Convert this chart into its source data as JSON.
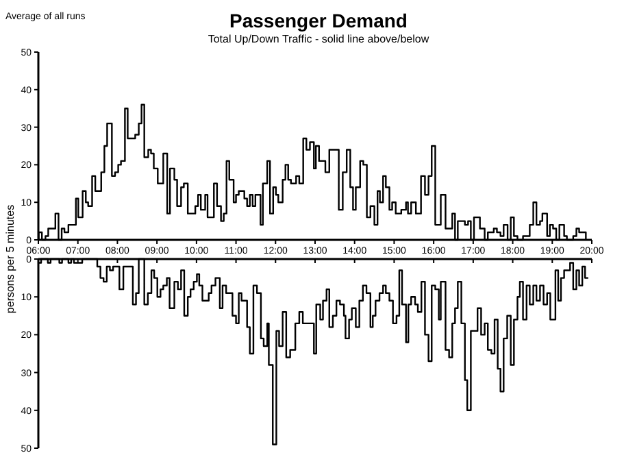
{
  "chart_data": [
    {
      "type": "step",
      "title": "Passenger Demand",
      "subtitle": "Total Up/Down Traffic - solid line above/below",
      "ylabel": "persons per 5 minutes",
      "annotations": [
        "Average of all runs"
      ],
      "xlim": [
        6,
        20
      ],
      "xticks": [
        {
          "value": 6,
          "label": "06:00"
        },
        {
          "value": 7,
          "label": "07:00"
        },
        {
          "value": 8,
          "label": "08:00"
        },
        {
          "value": 9,
          "label": "09:00"
        },
        {
          "value": 10,
          "label": "10:00"
        },
        {
          "value": 11,
          "label": "11:00"
        },
        {
          "value": 12,
          "label": "12:00"
        },
        {
          "value": 13,
          "label": "13:00"
        },
        {
          "value": 14,
          "label": "14:00"
        },
        {
          "value": 15,
          "label": "15:00"
        },
        {
          "value": 16,
          "label": "16:00"
        },
        {
          "value": 17,
          "label": "17:00"
        },
        {
          "value": 18,
          "label": "18:00"
        },
        {
          "value": 19,
          "label": "19:00"
        },
        {
          "value": 20,
          "label": "20:00"
        }
      ],
      "ylim": [
        0,
        50
      ],
      "yticks": [
        0,
        10,
        20,
        30,
        40,
        50
      ],
      "grid": false,
      "series": [
        {
          "color": "#000000",
          "x": [
            6.0,
            6.01,
            6.09,
            6.18,
            6.25,
            6.43,
            6.51,
            6.59,
            6.66,
            6.76,
            6.95,
            7.01,
            7.12,
            7.2,
            7.26,
            7.36,
            7.44,
            7.59,
            7.67,
            7.74,
            7.86,
            7.94,
            8.02,
            8.09,
            8.19,
            8.26,
            8.45,
            8.54,
            8.61,
            8.68,
            8.78,
            8.85,
            8.92,
            9.02,
            9.16,
            9.26,
            9.33,
            9.44,
            9.51,
            9.61,
            9.68,
            9.78,
            9.97,
            10.04,
            10.11,
            10.22,
            10.28,
            10.44,
            10.52,
            10.62,
            10.69,
            10.76,
            10.83,
            10.94,
            11.0,
            11.07,
            11.21,
            11.28,
            11.35,
            11.42,
            11.49,
            11.62,
            11.68,
            11.79,
            11.86,
            11.94,
            12.01,
            12.07,
            12.18,
            12.25,
            12.32,
            12.39,
            12.52,
            12.6,
            12.7,
            12.78,
            12.87,
            12.97,
            13.02,
            13.1,
            13.26,
            13.36,
            13.6,
            13.7,
            13.8,
            13.89,
            13.96,
            14.03,
            14.14,
            14.22,
            14.31,
            14.4,
            14.5,
            14.58,
            14.64,
            14.72,
            14.79,
            14.88,
            14.95,
            15.04,
            15.18,
            15.3,
            15.35,
            15.43,
            15.55,
            15.68,
            15.78,
            15.87,
            15.95,
            16.04,
            16.18,
            16.3,
            16.47,
            16.54,
            16.61,
            16.79,
            16.87,
            16.94,
            17.02,
            17.17,
            17.29,
            17.37,
            17.52,
            17.6,
            17.69,
            17.77,
            17.87,
            17.95,
            18.03,
            18.12,
            18.26,
            18.43,
            18.52,
            18.6,
            18.69,
            18.75,
            18.87,
            18.94,
            19.02,
            19.1,
            19.18,
            19.3,
            19.37,
            19.53,
            19.61,
            19.68,
            19.85
          ],
          "values": [
            0,
            2,
            0,
            1,
            3,
            7,
            0,
            3,
            2,
            4,
            11,
            6,
            13,
            10,
            9,
            17,
            13,
            18,
            25,
            31,
            17,
            18,
            20,
            21,
            35,
            27,
            28,
            31,
            36,
            22,
            24,
            23,
            19,
            15,
            23,
            7,
            19,
            16,
            9,
            14,
            15,
            7,
            9,
            12,
            8,
            12,
            6,
            15,
            9,
            5,
            7,
            21,
            16,
            10,
            12,
            13,
            11,
            9,
            12,
            9,
            12,
            4,
            15,
            21,
            7,
            14,
            12,
            10,
            16,
            20,
            16,
            15,
            17,
            15,
            27,
            24,
            26,
            19,
            25,
            21,
            18,
            24,
            8,
            18,
            24,
            14,
            8,
            14,
            21,
            20,
            6,
            9,
            4,
            13,
            10,
            17,
            14,
            8,
            10,
            7,
            8,
            10,
            7,
            10,
            7,
            17,
            12,
            17,
            25,
            4,
            12,
            3,
            7,
            0,
            5,
            4,
            5,
            0,
            6,
            3,
            0,
            2,
            3,
            2,
            1,
            4,
            0,
            6,
            1,
            0,
            1,
            4,
            10,
            4,
            5,
            7,
            1,
            4,
            3,
            0,
            4,
            1,
            0,
            1,
            3,
            2,
            0
          ]
        }
      ]
    },
    {
      "type": "step",
      "xlim": [
        6,
        20
      ],
      "xticks": [
        {
          "value": 6,
          "label": null
        },
        {
          "value": 7,
          "label": null
        },
        {
          "value": 8,
          "label": null
        },
        {
          "value": 9,
          "label": null
        },
        {
          "value": 10,
          "label": null
        },
        {
          "value": 11,
          "label": null
        },
        {
          "value": 12,
          "label": null
        },
        {
          "value": 13,
          "label": null
        },
        {
          "value": 14,
          "label": null
        },
        {
          "value": 15,
          "label": null
        },
        {
          "value": 16,
          "label": null
        },
        {
          "value": 17,
          "label": null
        },
        {
          "value": 18,
          "label": null
        },
        {
          "value": 19,
          "label": null
        },
        {
          "value": 20,
          "label": null
        }
      ],
      "ylim": [
        50,
        0
      ],
      "yticks": [
        0,
        10,
        20,
        30,
        40,
        50
      ],
      "tick_labels": "y",
      "grid": false,
      "series": [
        {
          "color": "#000000",
          "x": [
            6.0,
            6.07,
            6.24,
            6.31,
            6.53,
            6.6,
            6.76,
            6.83,
            6.9,
            7.11,
            7.49,
            7.57,
            7.65,
            7.73,
            7.81,
            7.89,
            8.05,
            8.15,
            8.39,
            8.47,
            8.54,
            8.68,
            8.77,
            8.86,
            8.93,
            9.01,
            9.09,
            9.16,
            9.25,
            9.32,
            9.44,
            9.53,
            9.61,
            9.69,
            9.78,
            9.85,
            9.93,
            10.01,
            10.07,
            10.15,
            10.31,
            10.38,
            10.48,
            10.59,
            10.66,
            10.75,
            10.91,
            11.0,
            11.07,
            11.14,
            11.28,
            11.35,
            11.44,
            11.53,
            11.63,
            11.7,
            11.79,
            11.83,
            11.93,
            12.02,
            12.09,
            12.18,
            12.27,
            12.37,
            12.5,
            12.6,
            12.69,
            12.97,
            13.03,
            13.13,
            13.2,
            13.29,
            13.36,
            13.45,
            13.54,
            13.63,
            13.73,
            13.77,
            13.86,
            13.93,
            14.03,
            14.12,
            14.21,
            14.3,
            14.4,
            14.46,
            14.53,
            14.63,
            14.72,
            14.79,
            14.88,
            14.97,
            15.06,
            15.13,
            15.2,
            15.3,
            15.36,
            15.43,
            15.53,
            15.6,
            15.69,
            15.78,
            15.87,
            15.95,
            16.04,
            16.13,
            16.18,
            16.3,
            16.39,
            16.47,
            16.54,
            16.61,
            16.7,
            16.79,
            16.85,
            16.94,
            17.11,
            17.2,
            17.29,
            17.37,
            17.46,
            17.54,
            17.62,
            17.69,
            17.77,
            17.86,
            17.95,
            18.03,
            18.12,
            18.18,
            18.26,
            18.35,
            18.43,
            18.52,
            18.6,
            18.69,
            18.78,
            18.87,
            18.95,
            19.08,
            19.15,
            19.22,
            19.3,
            19.45,
            19.53,
            19.61,
            19.68,
            19.76,
            19.83,
            19.91
          ],
          "values": [
            1,
            0,
            1,
            0,
            1,
            0,
            1,
            0,
            1,
            0,
            2,
            5,
            6,
            2,
            3,
            2,
            8,
            2,
            12,
            9,
            0,
            12,
            9,
            3,
            5,
            10,
            8,
            7,
            5,
            13,
            6,
            8,
            3,
            15,
            10,
            8,
            6,
            4,
            7,
            11,
            9,
            7,
            5,
            13,
            7,
            9,
            15,
            17,
            9,
            11,
            18,
            25,
            7,
            9,
            21,
            23,
            17,
            28,
            49,
            19,
            23,
            14,
            26,
            24,
            17,
            14,
            17,
            25,
            12,
            16,
            11,
            8,
            18,
            15,
            11,
            12,
            15,
            21,
            16,
            13,
            18,
            11,
            7,
            9,
            18,
            15,
            11,
            9,
            7,
            9,
            11,
            17,
            15,
            3,
            12,
            22,
            12,
            10,
            12,
            14,
            6,
            20,
            27,
            7,
            8,
            16,
            6,
            24,
            26,
            17,
            13,
            6,
            17,
            32,
            40,
            19,
            13,
            20,
            17,
            24,
            25,
            16,
            29,
            35,
            21,
            15,
            28,
            16,
            10,
            6,
            16,
            7,
            12,
            7,
            11,
            7,
            12,
            9,
            16,
            3,
            11,
            5,
            3,
            1,
            8,
            3,
            7,
            2,
            5,
            5
          ]
        }
      ]
    }
  ]
}
